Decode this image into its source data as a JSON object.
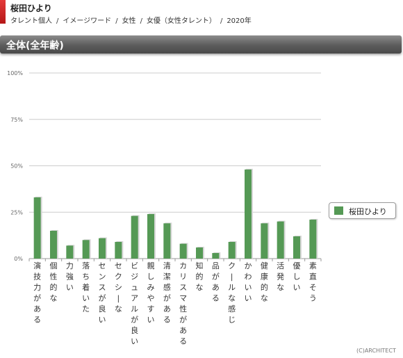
{
  "header": {
    "name": "桜田ひより",
    "breadcrumb": [
      "タレント個人",
      "イメージワード",
      "女性",
      "女優（女性タレント）",
      "2020年"
    ]
  },
  "section": {
    "title": "全体(全年齢)"
  },
  "legend": {
    "label": "桜田ひより"
  },
  "footer": {
    "copyright": "(C)ARCHITECT"
  },
  "colors": {
    "bar": "#559955",
    "grid": "#cccccc",
    "axis": "#999999"
  },
  "chart_data": {
    "type": "bar",
    "ylim": [
      0,
      100
    ],
    "yticks": [
      "0%",
      "25%",
      "50%",
      "75%",
      "100%"
    ],
    "categories": [
      "演技力がある",
      "個性的な",
      "力強い",
      "落ち着いた",
      "センスが良い",
      "セクシーな",
      "ビジュアルが良い",
      "親しみやすい",
      "清潔感がある",
      "カリスマ性がある",
      "知的な",
      "品がある",
      "クールな感じ",
      "かわいい",
      "健康的な",
      "活発な",
      "優しい",
      "素直そう"
    ],
    "series": [
      {
        "name": "桜田ひより",
        "values": [
          33,
          15,
          7,
          10,
          11,
          9,
          23,
          24,
          19,
          8,
          6,
          3,
          9,
          48,
          19,
          20,
          12,
          21
        ]
      }
    ]
  }
}
